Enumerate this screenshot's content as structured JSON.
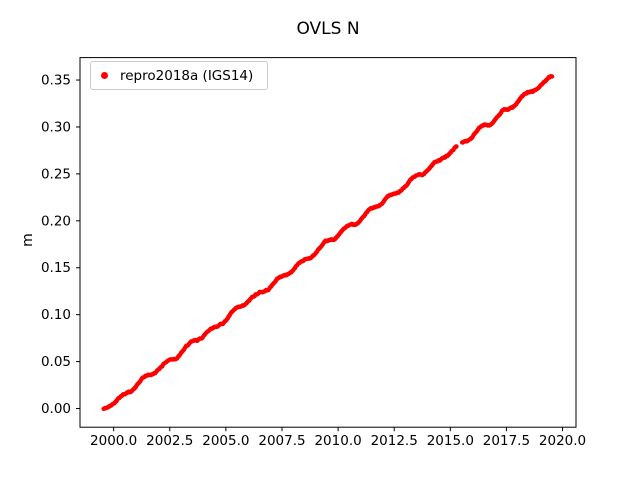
{
  "chart_data": {
    "type": "scatter",
    "title": "OVLS N",
    "xlabel": "",
    "ylabel": "m",
    "xlim": [
      1998.5,
      2020.6
    ],
    "ylim": [
      -0.0199,
      0.3739
    ],
    "xticks": [
      2000.0,
      2002.5,
      2005.0,
      2007.5,
      2010.0,
      2012.5,
      2015.0,
      2017.5,
      2020.0
    ],
    "xtick_labels": [
      "2000.0",
      "2002.5",
      "2005.0",
      "2007.5",
      "2010.0",
      "2012.5",
      "2015.0",
      "2017.5",
      "2020.0"
    ],
    "yticks": [
      0.0,
      0.05,
      0.1,
      0.15,
      0.2,
      0.25,
      0.3,
      0.35
    ],
    "ytick_labels": [
      "0.00",
      "0.05",
      "0.10",
      "0.15",
      "0.20",
      "0.25",
      "0.30",
      "0.35"
    ],
    "grid": false,
    "legend": {
      "label": "repro2018a (IGS14)",
      "marker_color": "#ff0000",
      "position": "upper left"
    },
    "series": [
      {
        "name": "repro2018a (IGS14)",
        "color": "#ff0000",
        "marker": "dot",
        "model": {
          "x_start": 1999.55,
          "x_end": 2019.55,
          "step": 0.0192,
          "y_at_start": -0.001,
          "y_at_end": 0.356,
          "slope_m_per_yr": 0.01775,
          "seasonal_amplitude": 0.0018,
          "noise_step": 0.001,
          "noise_damping": 0.95,
          "seed": 42,
          "gaps": [
            [
              2015.28,
              2015.52
            ]
          ]
        },
        "anchor_points": [
          [
            1999.55,
            -0.001
          ],
          [
            2000.0,
            0.008
          ],
          [
            2002.5,
            0.052
          ],
          [
            2005.0,
            0.097
          ],
          [
            2007.5,
            0.141
          ],
          [
            2010.0,
            0.186
          ],
          [
            2012.5,
            0.231
          ],
          [
            2015.0,
            0.275
          ],
          [
            2017.5,
            0.32
          ],
          [
            2019.55,
            0.356
          ]
        ]
      }
    ]
  }
}
